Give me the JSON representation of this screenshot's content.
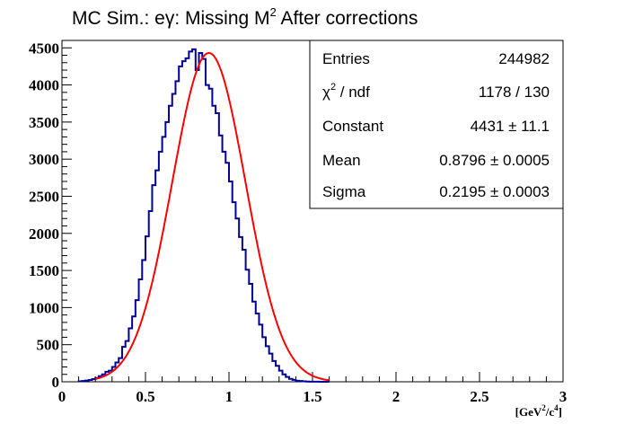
{
  "chart_data": {
    "type": "histogram",
    "title_parts": {
      "pre": "MC Sim.: e",
      "gamma": "γ",
      "mid": ": Missing M",
      "sup": "2",
      "post": " After corrections"
    },
    "xlabel_parts": {
      "pre": "[GeV",
      "sup1": "2",
      "mid": "/c",
      "sup2": "4",
      "post": "]"
    },
    "xlim": [
      0,
      3
    ],
    "ylim": [
      0,
      4600
    ],
    "x_ticks": [
      "0",
      "0.5",
      "1",
      "1.5",
      "2",
      "2.5",
      "3"
    ],
    "y_ticks": [
      "0",
      "500",
      "1000",
      "1500",
      "2000",
      "2500",
      "3000",
      "3500",
      "4000",
      "4500"
    ],
    "histogram": {
      "color": "#000099",
      "bin_width": 0.02,
      "x_start": 0.1,
      "values": [
        6,
        10,
        16,
        24,
        36,
        52,
        75,
        100,
        135,
        150,
        200,
        260,
        320,
        470,
        550,
        720,
        880,
        1100,
        1380,
        1640,
        1960,
        2300,
        2650,
        2850,
        3100,
        3300,
        3500,
        3720,
        3880,
        4050,
        4250,
        4320,
        4360,
        4450,
        4480,
        4200,
        4430,
        4350,
        4000,
        3950,
        3720,
        3620,
        3320,
        3100,
        2950,
        2700,
        2420,
        2200,
        1950,
        1780,
        1510,
        1320,
        1080,
        920,
        770,
        600,
        480,
        380,
        280,
        215,
        150,
        100,
        65,
        40,
        25,
        14,
        10,
        6,
        3,
        2,
        1,
        1,
        0,
        0,
        0
      ]
    },
    "fit": {
      "type": "gaussian",
      "color": "#ff0000",
      "constant": 4431,
      "mean": 0.8796,
      "sigma": 0.2195,
      "x_range": [
        0.2,
        1.6
      ]
    },
    "stats_box": {
      "rows": [
        {
          "label": "Entries",
          "value": "244982"
        },
        {
          "label_pre": "χ",
          "label_sup": "2",
          "label_post": " / ndf",
          "value": "1178 / 130"
        },
        {
          "label": "Constant",
          "value": "4431 ± 11.1"
        },
        {
          "label": "Mean",
          "value": "0.8796 ± 0.0005"
        },
        {
          "label": "Sigma",
          "value": "0.2195 ± 0.0003"
        }
      ]
    }
  }
}
